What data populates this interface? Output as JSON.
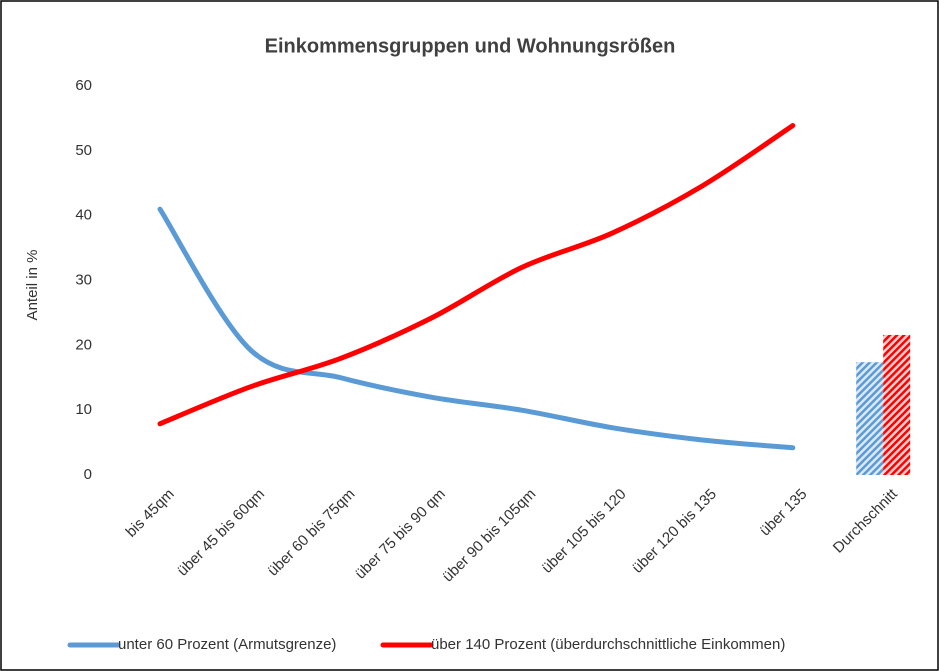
{
  "chart_data": {
    "type": "line",
    "title": "Einkommensgruppen und Wohnungsrößen",
    "y_label": "Anteil in %",
    "categories": [
      "bis 45qm",
      "über 45 bis 60qm",
      "über 60 bis 75qm",
      "über 75 bis 90 qm",
      "über 90 bis 105qm",
      "über 105 bis 120",
      "über 120 bis 135",
      "über 135",
      "Durchschnitt"
    ],
    "series": [
      {
        "name": "unter 60 Prozent (Armutsgrenze)",
        "color": "#5b9bd5",
        "values": [
          41.0,
          19.3,
          15.0,
          12.0,
          10.0,
          7.3,
          5.4,
          4.2,
          17.4
        ]
      },
      {
        "name": "über 140 Prozent (überdurchschnittliche Einkommen)",
        "color": "#ff0000",
        "values": [
          7.9,
          13.6,
          18.0,
          24.2,
          32.0,
          37.3,
          44.6,
          53.9,
          21.6
        ]
      }
    ],
    "ylim": [
      0,
      60
    ],
    "yticks": [
      0,
      10,
      20,
      30,
      40,
      50,
      60
    ],
    "grid": false,
    "legend": "bottom"
  }
}
